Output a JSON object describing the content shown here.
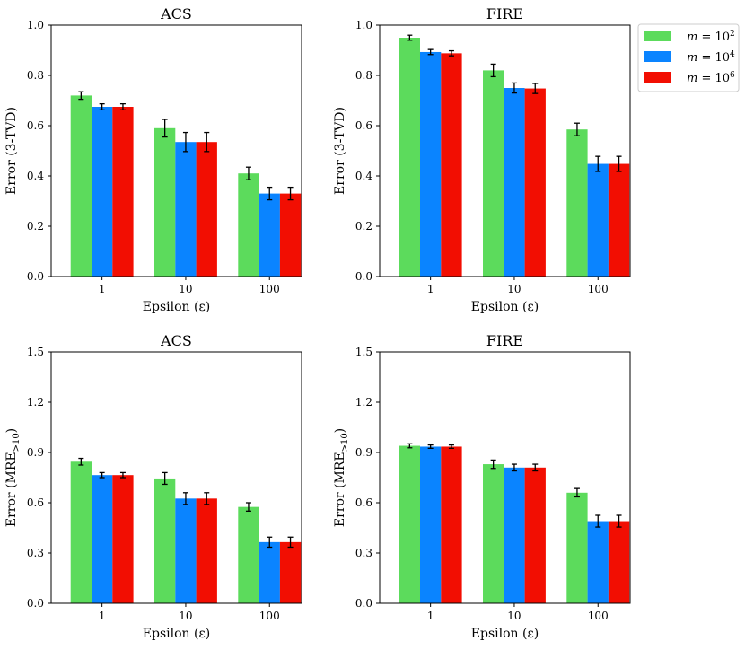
{
  "figure_title": "",
  "legend": {
    "entries": [
      {
        "var": "m",
        "eq": " = 10",
        "exp": "2",
        "color": "#5cdb5c"
      },
      {
        "var": "m",
        "eq": " = 10",
        "exp": "4",
        "color": "#0a84ff"
      },
      {
        "var": "m",
        "eq": " = 10",
        "exp": "6",
        "color": "#f20e02"
      }
    ]
  },
  "chart_data": [
    {
      "type": "bar",
      "title": "ACS",
      "xlabel": "Epsilon (ε)",
      "ylabel": "Error (3-TVD)",
      "ylabel_sub": "",
      "ylabel_tail": "",
      "categories": [
        "1",
        "10",
        "100"
      ],
      "ylim": [
        0,
        1.0
      ],
      "yticks": [
        "0.0",
        "0.2",
        "0.4",
        "0.6",
        "0.8",
        "1.0"
      ],
      "series": [
        {
          "name": "m = 10^2",
          "values": [
            0.72,
            0.59,
            0.41
          ],
          "errors": [
            0.015,
            0.035,
            0.025
          ]
        },
        {
          "name": "m = 10^4",
          "values": [
            0.675,
            0.535,
            0.33
          ],
          "errors": [
            0.012,
            0.038,
            0.025
          ]
        },
        {
          "name": "m = 10^6",
          "values": [
            0.675,
            0.535,
            0.33
          ],
          "errors": [
            0.012,
            0.038,
            0.025
          ]
        }
      ]
    },
    {
      "type": "bar",
      "title": "FIRE",
      "xlabel": "Epsilon (ε)",
      "ylabel": "Error (3-TVD)",
      "ylabel_sub": "",
      "ylabel_tail": "",
      "categories": [
        "1",
        "10",
        "100"
      ],
      "ylim": [
        0,
        1.0
      ],
      "yticks": [
        "0.0",
        "0.2",
        "0.4",
        "0.6",
        "0.8",
        "1.0"
      ],
      "series": [
        {
          "name": "m = 10^2",
          "values": [
            0.95,
            0.82,
            0.585
          ],
          "errors": [
            0.01,
            0.025,
            0.025
          ]
        },
        {
          "name": "m = 10^4",
          "values": [
            0.893,
            0.75,
            0.448
          ],
          "errors": [
            0.01,
            0.02,
            0.03
          ]
        },
        {
          "name": "m = 10^6",
          "values": [
            0.888,
            0.748,
            0.448
          ],
          "errors": [
            0.01,
            0.02,
            0.03
          ]
        }
      ]
    },
    {
      "type": "bar",
      "title": "ACS",
      "xlabel": "Epsilon (ε)",
      "ylabel": "Error (MRE",
      "ylabel_sub": ">10",
      "ylabel_tail": ")",
      "categories": [
        "1",
        "10",
        "100"
      ],
      "ylim": [
        0,
        1.5
      ],
      "yticks": [
        "0.0",
        "0.3",
        "0.6",
        "0.9",
        "1.2",
        "1.5"
      ],
      "series": [
        {
          "name": "m = 10^2",
          "values": [
            0.845,
            0.745,
            0.575
          ],
          "errors": [
            0.02,
            0.035,
            0.025
          ]
        },
        {
          "name": "m = 10^4",
          "values": [
            0.765,
            0.625,
            0.365
          ],
          "errors": [
            0.015,
            0.035,
            0.03
          ]
        },
        {
          "name": "m = 10^6",
          "values": [
            0.765,
            0.625,
            0.365
          ],
          "errors": [
            0.015,
            0.035,
            0.03
          ]
        }
      ]
    },
    {
      "type": "bar",
      "title": "FIRE",
      "xlabel": "Epsilon (ε)",
      "ylabel": "Error (MRE",
      "ylabel_sub": ">10",
      "ylabel_tail": ")",
      "categories": [
        "1",
        "10",
        "100"
      ],
      "ylim": [
        0,
        1.5
      ],
      "yticks": [
        "0.0",
        "0.3",
        "0.6",
        "0.9",
        "1.2",
        "1.5"
      ],
      "series": [
        {
          "name": "m = 10^2",
          "values": [
            0.94,
            0.83,
            0.66
          ],
          "errors": [
            0.012,
            0.025,
            0.025
          ]
        },
        {
          "name": "m = 10^4",
          "values": [
            0.935,
            0.81,
            0.49
          ],
          "errors": [
            0.01,
            0.02,
            0.035
          ]
        },
        {
          "name": "m = 10^6",
          "values": [
            0.935,
            0.81,
            0.49
          ],
          "errors": [
            0.01,
            0.02,
            0.035
          ]
        }
      ]
    }
  ]
}
